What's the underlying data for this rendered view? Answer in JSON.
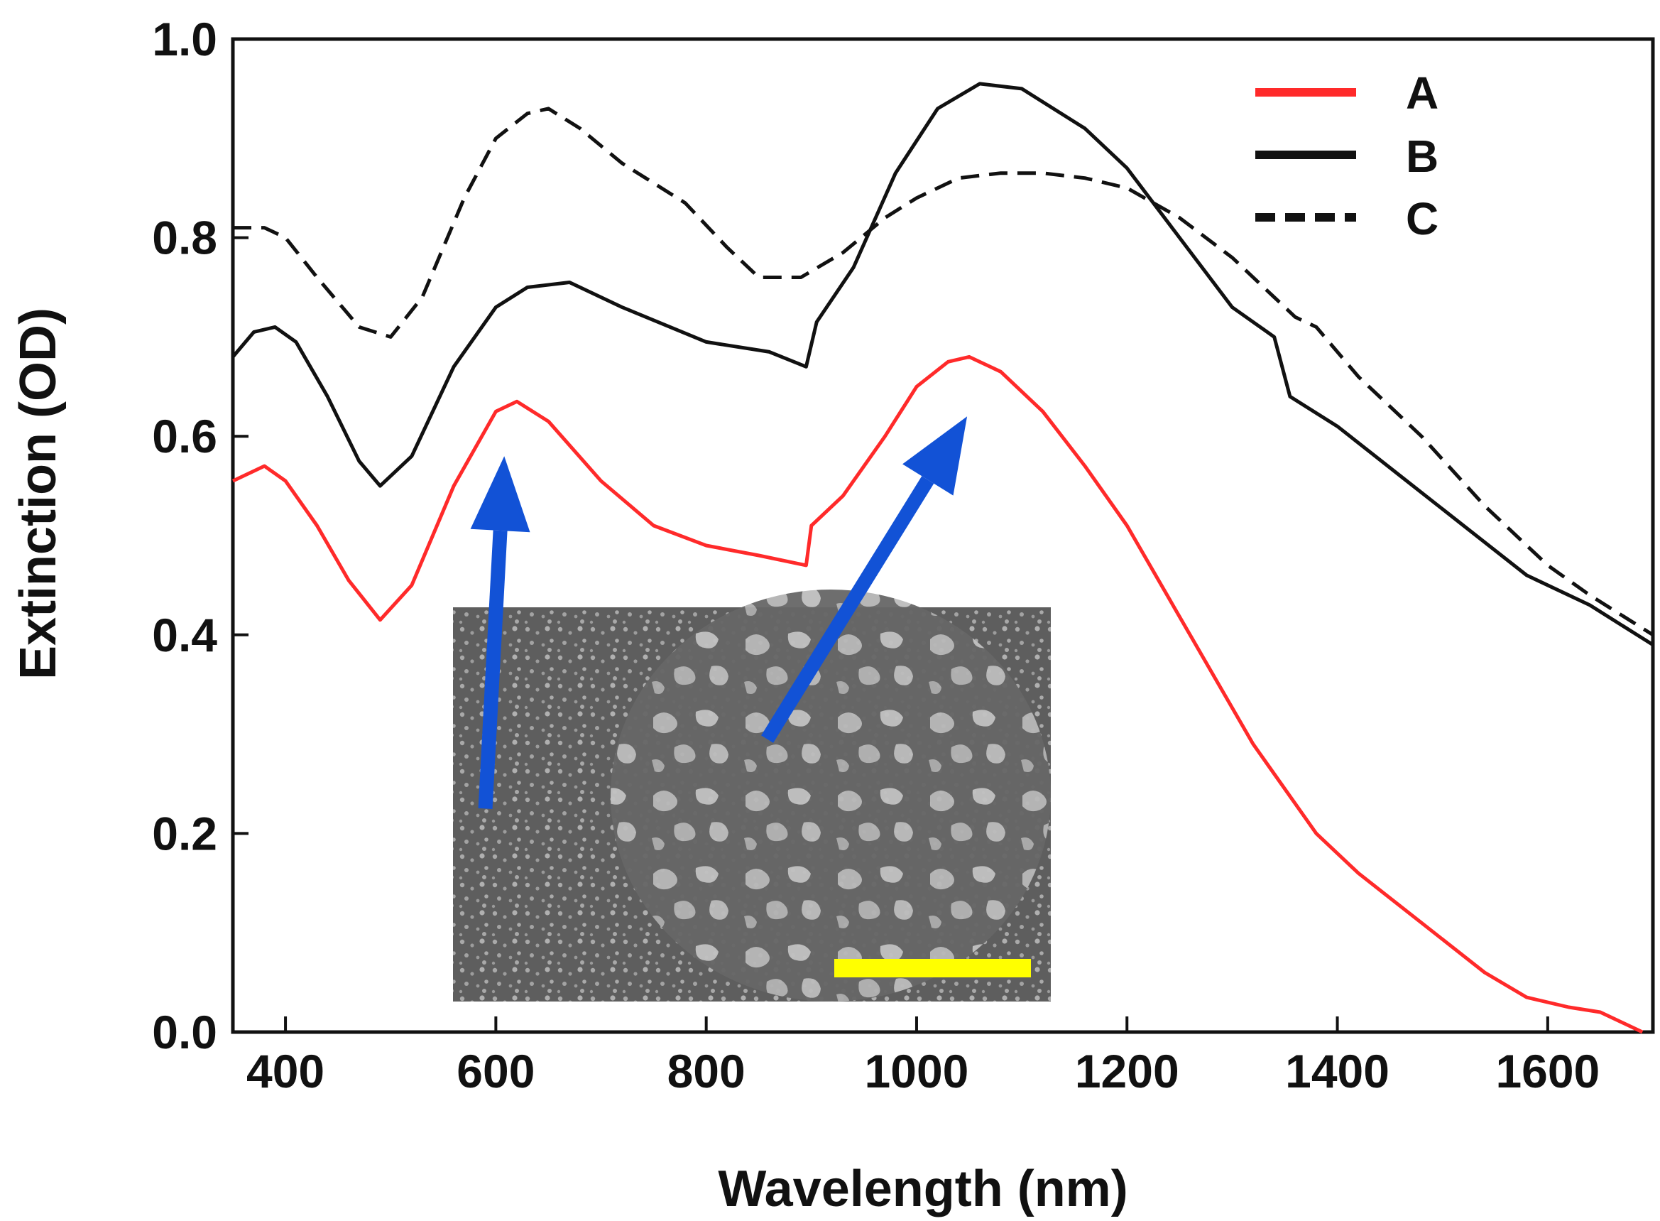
{
  "chart_data": {
    "type": "line",
    "title": "",
    "xlabel": "Wavelength (nm)",
    "ylabel": "Extinction (OD)",
    "xlim": [
      350,
      1700
    ],
    "ylim": [
      0.0,
      1.0
    ],
    "xticks": [
      400,
      600,
      800,
      1000,
      1200,
      1400,
      1600
    ],
    "yticks": [
      0.0,
      0.2,
      0.4,
      0.6,
      0.8,
      1.0
    ],
    "xtick_labels": [
      "400",
      "600",
      "800",
      "1000",
      "1200",
      "1400",
      "1600"
    ],
    "ytick_labels": [
      "0.0",
      "0.2",
      "0.4",
      "0.6",
      "0.8",
      "1.0"
    ],
    "grid": false,
    "legend_position": "top-right",
    "series": [
      {
        "name": "A",
        "color": "#ff2a2a",
        "style": "solid",
        "x": [
          350,
          380,
          400,
          430,
          460,
          490,
          520,
          560,
          600,
          620,
          650,
          700,
          750,
          800,
          850,
          895,
          900,
          930,
          970,
          1000,
          1030,
          1050,
          1080,
          1120,
          1160,
          1200,
          1260,
          1320,
          1380,
          1420,
          1480,
          1540,
          1580,
          1620,
          1650,
          1690
        ],
        "y": [
          0.555,
          0.57,
          0.555,
          0.51,
          0.455,
          0.415,
          0.45,
          0.55,
          0.625,
          0.635,
          0.615,
          0.555,
          0.51,
          0.49,
          0.48,
          0.47,
          0.51,
          0.54,
          0.6,
          0.65,
          0.675,
          0.68,
          0.665,
          0.625,
          0.57,
          0.51,
          0.4,
          0.29,
          0.2,
          0.16,
          0.11,
          0.06,
          0.035,
          0.025,
          0.02,
          0.0
        ]
      },
      {
        "name": "B",
        "color": "#111111",
        "style": "solid",
        "x": [
          350,
          370,
          390,
          410,
          440,
          470,
          490,
          520,
          560,
          600,
          630,
          670,
          720,
          800,
          860,
          895,
          905,
          940,
          980,
          1020,
          1060,
          1100,
          1160,
          1200,
          1250,
          1300,
          1340,
          1355,
          1370,
          1400,
          1460,
          1520,
          1580,
          1640,
          1700
        ],
        "y": [
          0.68,
          0.705,
          0.71,
          0.695,
          0.64,
          0.575,
          0.55,
          0.58,
          0.67,
          0.73,
          0.75,
          0.755,
          0.73,
          0.695,
          0.685,
          0.67,
          0.715,
          0.77,
          0.865,
          0.93,
          0.955,
          0.95,
          0.91,
          0.87,
          0.8,
          0.73,
          0.7,
          0.64,
          0.63,
          0.61,
          0.56,
          0.51,
          0.46,
          0.43,
          0.39
        ]
      },
      {
        "name": "C",
        "color": "#111111",
        "style": "dashed",
        "x": [
          350,
          380,
          400,
          430,
          470,
          500,
          530,
          570,
          600,
          630,
          650,
          680,
          720,
          780,
          820,
          850,
          890,
          930,
          970,
          1000,
          1040,
          1080,
          1120,
          1160,
          1200,
          1250,
          1300,
          1340,
          1360,
          1380,
          1420,
          1480,
          1540,
          1600,
          1640,
          1700
        ],
        "y": [
          0.81,
          0.81,
          0.8,
          0.76,
          0.71,
          0.7,
          0.74,
          0.84,
          0.9,
          0.925,
          0.93,
          0.91,
          0.875,
          0.835,
          0.79,
          0.76,
          0.76,
          0.785,
          0.82,
          0.84,
          0.86,
          0.865,
          0.865,
          0.86,
          0.85,
          0.82,
          0.78,
          0.74,
          0.72,
          0.71,
          0.66,
          0.6,
          0.53,
          0.47,
          0.44,
          0.4
        ]
      }
    ],
    "annotations": {
      "inset": "SEM image of nanoparticle film",
      "arrows": [
        {
          "from": [
            590,
            0.225
          ],
          "to": [
            608,
            0.58
          ]
        },
        {
          "from": [
            858,
            0.295
          ],
          "to": [
            1048,
            0.62
          ]
        }
      ]
    }
  }
}
